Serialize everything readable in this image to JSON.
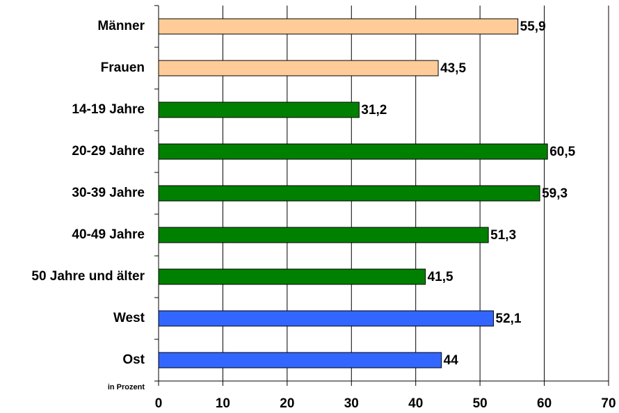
{
  "chart_data": {
    "type": "barh",
    "categories": [
      "Männer",
      "Frauen",
      "14-19 Jahre",
      "20-29 Jahre",
      "30-39 Jahre",
      "40-49 Jahre",
      "50 Jahre und älter",
      "West",
      "Ost"
    ],
    "values": [
      55.9,
      43.5,
      31.2,
      60.5,
      59.3,
      51.3,
      41.5,
      52.1,
      44
    ],
    "value_labels": [
      "55,9",
      "43,5",
      "31,2",
      "60,5",
      "59,3",
      "51,3",
      "41,5",
      "52,1",
      "44"
    ],
    "colors": [
      "#ffcc99",
      "#ffcc99",
      "#008000",
      "#008000",
      "#008000",
      "#008000",
      "#008000",
      "#3366ff",
      "#3366ff"
    ],
    "x_label": "in Prozent",
    "xlim": [
      0,
      70
    ],
    "xticks": [
      0,
      10,
      20,
      30,
      40,
      50,
      60,
      70
    ],
    "grid": true
  }
}
